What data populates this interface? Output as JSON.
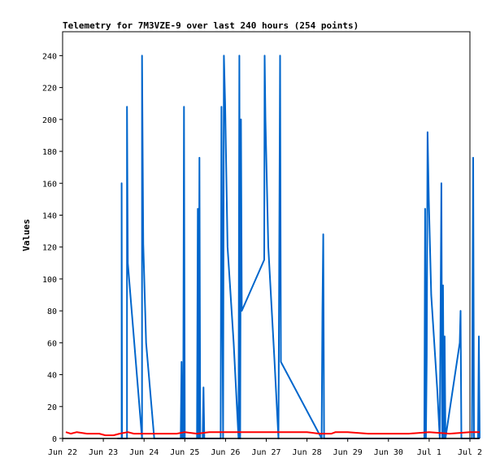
{
  "chart_data": {
    "type": "line",
    "title": "Telemetry for 7M3VZE-9 over last 240 hours (254 points)",
    "xlabel": "",
    "ylabel": "Values",
    "xlim": [
      "Jun 22",
      "Jul 2"
    ],
    "ylim": [
      0,
      255
    ],
    "x_ticks": [
      "Jun 22",
      "Jun 23",
      "Jun 24",
      "Jun 25",
      "Jun 26",
      "Jun 27",
      "Jun 28",
      "Jun 29",
      "Jun 30",
      "Jul 1",
      "Jul 2"
    ],
    "y_ticks": [
      0,
      20,
      40,
      60,
      80,
      100,
      120,
      140,
      160,
      180,
      200,
      220,
      240
    ],
    "grid": false,
    "legend": "none",
    "series": [
      {
        "color": "#0066cc",
        "points": [
          [
            1.35,
            0
          ],
          [
            1.45,
            0
          ],
          [
            1.45,
            160
          ],
          [
            1.46,
            0
          ],
          [
            1.58,
            0
          ],
          [
            1.58,
            208
          ],
          [
            1.6,
            110
          ],
          [
            1.95,
            0
          ],
          [
            1.95,
            240
          ],
          [
            1.98,
            122
          ],
          [
            2.05,
            60
          ],
          [
            2.25,
            0
          ],
          [
            2.9,
            0
          ],
          [
            2.92,
            48
          ],
          [
            2.94,
            0
          ],
          [
            2.96,
            0
          ],
          [
            2.98,
            208
          ],
          [
            3.0,
            0
          ],
          [
            3.3,
            0
          ],
          [
            3.32,
            144
          ],
          [
            3.34,
            0
          ],
          [
            3.36,
            176
          ],
          [
            3.38,
            0
          ],
          [
            3.44,
            0
          ],
          [
            3.46,
            32
          ],
          [
            3.48,
            0
          ],
          [
            3.88,
            0
          ],
          [
            3.9,
            208
          ],
          [
            3.92,
            98
          ],
          [
            3.94,
            0
          ],
          [
            3.96,
            240
          ],
          [
            3.99,
            210
          ],
          [
            4.05,
            120
          ],
          [
            4.2,
            60
          ],
          [
            4.32,
            0
          ],
          [
            4.34,
            240
          ],
          [
            4.36,
            0
          ],
          [
            4.38,
            200
          ],
          [
            4.4,
            80
          ],
          [
            4.95,
            112
          ],
          [
            4.96,
            240
          ],
          [
            4.98,
            200
          ],
          [
            5.05,
            120
          ],
          [
            5.2,
            50
          ],
          [
            5.3,
            0
          ],
          [
            5.34,
            240
          ],
          [
            5.36,
            48
          ],
          [
            6.36,
            0
          ],
          [
            6.38,
            80
          ],
          [
            6.4,
            128
          ],
          [
            6.42,
            0
          ],
          [
            8.88,
            0
          ],
          [
            8.9,
            144
          ],
          [
            8.92,
            0
          ],
          [
            8.94,
            52
          ],
          [
            8.96,
            192
          ],
          [
            8.99,
            150
          ],
          [
            9.05,
            90
          ],
          [
            9.2,
            30
          ],
          [
            9.26,
            0
          ],
          [
            9.3,
            160
          ],
          [
            9.32,
            0
          ],
          [
            9.34,
            96
          ],
          [
            9.36,
            0
          ],
          [
            9.38,
            64
          ],
          [
            9.4,
            0
          ],
          [
            9.75,
            60
          ],
          [
            9.77,
            80
          ],
          [
            9.79,
            0
          ],
          [
            10.05,
            0
          ],
          [
            10.08,
            176
          ],
          [
            10.1,
            0
          ],
          [
            10.2,
            0
          ],
          [
            10.22,
            64
          ],
          [
            10.24,
            0
          ]
        ]
      },
      {
        "color": "#ff0000",
        "points": [
          [
            0.08,
            4
          ],
          [
            0.2,
            3
          ],
          [
            0.35,
            4
          ],
          [
            0.6,
            3
          ],
          [
            0.9,
            3
          ],
          [
            1.05,
            2
          ],
          [
            1.25,
            2
          ],
          [
            1.4,
            3
          ],
          [
            1.6,
            4
          ],
          [
            1.75,
            3
          ],
          [
            2.0,
            3
          ],
          [
            2.2,
            3
          ],
          [
            2.5,
            3
          ],
          [
            2.8,
            3
          ],
          [
            3.0,
            4
          ],
          [
            3.3,
            3
          ],
          [
            3.6,
            4
          ],
          [
            4.0,
            4
          ],
          [
            4.4,
            4
          ],
          [
            4.8,
            4
          ],
          [
            5.2,
            4
          ],
          [
            5.6,
            4
          ],
          [
            6.0,
            4
          ],
          [
            6.3,
            3
          ],
          [
            6.6,
            3
          ],
          [
            6.7,
            4
          ],
          [
            7.0,
            4
          ],
          [
            7.5,
            3
          ],
          [
            8.0,
            3
          ],
          [
            8.5,
            3
          ],
          [
            9.0,
            4
          ],
          [
            9.5,
            3
          ],
          [
            10.0,
            4
          ],
          [
            10.24,
            4
          ]
        ]
      },
      {
        "color": "#000000",
        "points": [
          [
            0,
            0
          ],
          [
            10.24,
            0
          ]
        ]
      }
    ]
  }
}
